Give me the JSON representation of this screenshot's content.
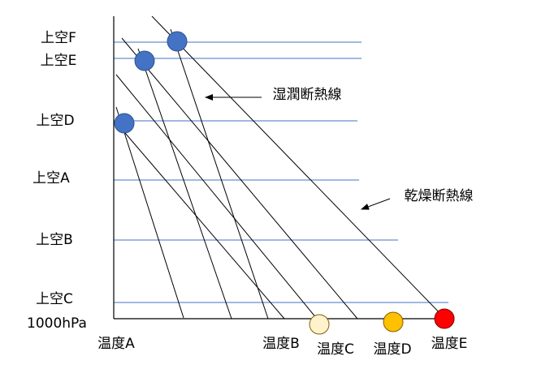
{
  "levels": {
    "F": "上空F",
    "E": "上空E",
    "D": "上空D",
    "A": "上空A",
    "B": "上空B",
    "C": "上空C",
    "base": "1000hPa"
  },
  "temperatures": {
    "A": "温度A",
    "B": "温度B",
    "C": "温度C",
    "D": "温度D",
    "E": "温度E"
  },
  "annotations": {
    "moist": "湿潤断熱線",
    "dry": "乾燥断熱線"
  }
}
